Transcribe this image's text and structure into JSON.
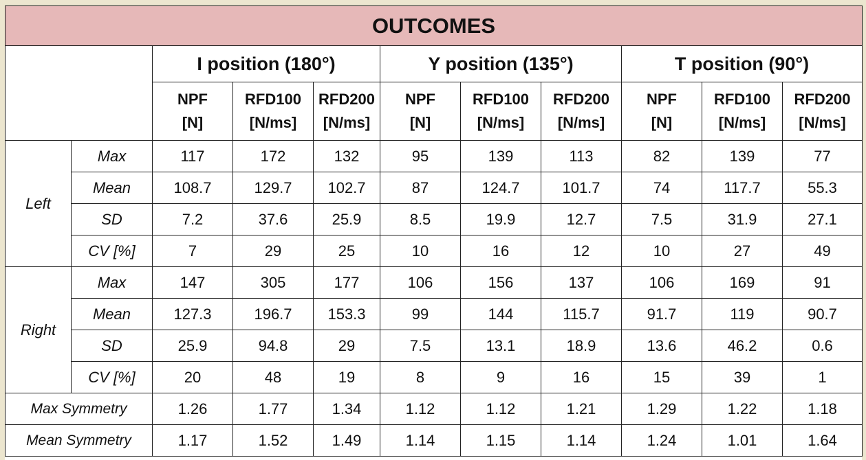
{
  "title": "OUTCOMES",
  "positions": [
    "I position (180°)",
    "Y position (135°)",
    "T position (90°)"
  ],
  "columns": [
    {
      "name": "NPF",
      "unit": "[N]"
    },
    {
      "name": "RFD100",
      "unit": "[N/ms]"
    },
    {
      "name": "RFD200",
      "unit": "[N/ms]"
    },
    {
      "name": "NPF",
      "unit": "[N]"
    },
    {
      "name": "RFD100",
      "unit": "[N/ms]"
    },
    {
      "name": "RFD200",
      "unit": "[N/ms]"
    },
    {
      "name": "NPF",
      "unit": "[N]"
    },
    {
      "name": "RFD100",
      "unit": "[N/ms]"
    },
    {
      "name": "RFD200",
      "unit": "[N/ms]"
    }
  ],
  "groups": [
    {
      "side": "Left",
      "rows": [
        {
          "stat": "Max",
          "values": [
            "117",
            "172",
            "132",
            "95",
            "139",
            "113",
            "82",
            "139",
            "77"
          ]
        },
        {
          "stat": "Mean",
          "values": [
            "108.7",
            "129.7",
            "102.7",
            "87",
            "124.7",
            "101.7",
            "74",
            "117.7",
            "55.3"
          ]
        },
        {
          "stat": "SD",
          "values": [
            "7.2",
            "37.6",
            "25.9",
            "8.5",
            "19.9",
            "12.7",
            "7.5",
            "31.9",
            "27.1"
          ]
        },
        {
          "stat": "CV [%]",
          "values": [
            "7",
            "29",
            "25",
            "10",
            "16",
            "12",
            "10",
            "27",
            "49"
          ]
        }
      ]
    },
    {
      "side": "Right",
      "rows": [
        {
          "stat": "Max",
          "values": [
            "147",
            "305",
            "177",
            "106",
            "156",
            "137",
            "106",
            "169",
            "91"
          ]
        },
        {
          "stat": "Mean",
          "values": [
            "127.3",
            "196.7",
            "153.3",
            "99",
            "144",
            "115.7",
            "91.7",
            "119",
            "90.7"
          ]
        },
        {
          "stat": "SD",
          "values": [
            "25.9",
            "94.8",
            "29",
            "7.5",
            "13.1",
            "18.9",
            "13.6",
            "46.2",
            "0.6"
          ]
        },
        {
          "stat": "CV [%]",
          "values": [
            "20",
            "48",
            "19",
            "8",
            "9",
            "16",
            "15",
            "39",
            "1"
          ]
        }
      ]
    }
  ],
  "symmetry": [
    {
      "label": "Max Symmetry",
      "values": [
        "1.26",
        "1.77",
        "1.34",
        "1.12",
        "1.12",
        "1.21",
        "1.29",
        "1.22",
        "1.18"
      ]
    },
    {
      "label": "Mean Symmetry",
      "values": [
        "1.17",
        "1.52",
        "1.49",
        "1.14",
        "1.15",
        "1.14",
        "1.24",
        "1.01",
        "1.64"
      ]
    }
  ],
  "colors": {
    "title_bg": "#e6b8b8",
    "border": "#222222",
    "page_bg": "#ece6cf"
  }
}
